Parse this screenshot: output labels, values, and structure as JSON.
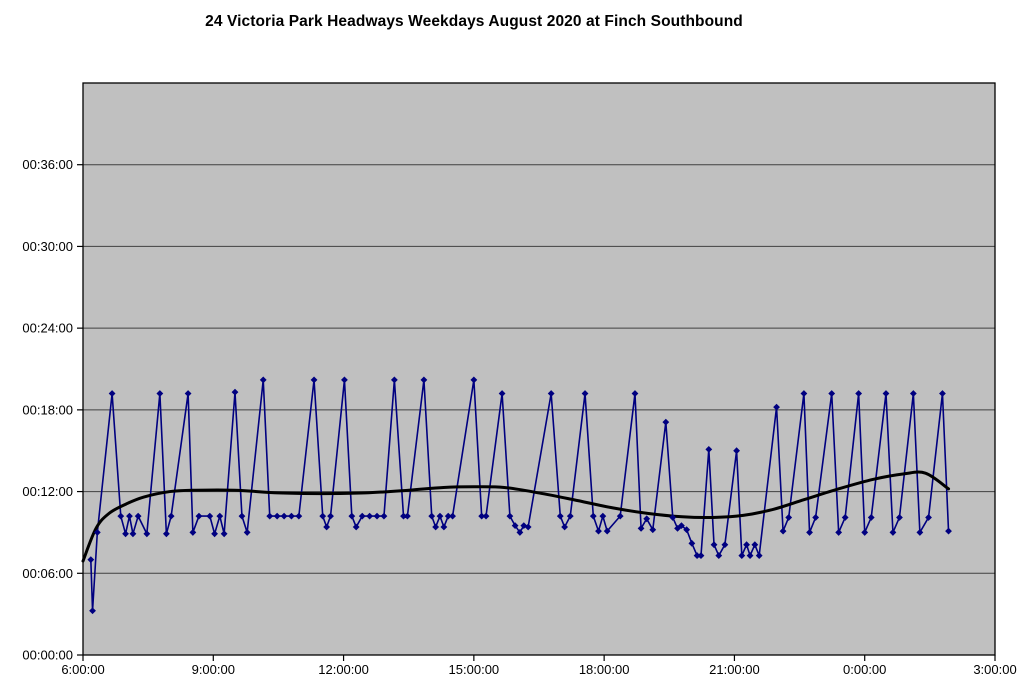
{
  "title": "24 Victoria Park Headways Weekdays August 2020 at Finch Southbound",
  "colors": {
    "plot_background": "#c0c0c0",
    "gridline": "#404040",
    "plot_border": "#000000",
    "headway_series": "#000080",
    "trend_series": "#000000",
    "page_background": "#ffffff",
    "text": "#000000"
  },
  "chart_data": {
    "type": "line",
    "title": "24 Victoria Park Headways Weekdays August 2020 at Finch Southbound",
    "xlabel": "",
    "ylabel": "",
    "legend": "none",
    "grid": "horizontal-only",
    "x_axis": {
      "unit": "time of day (decimal hours, 24+ = after midnight)",
      "min_hours": 6,
      "max_hours": 27,
      "tick_hours": [
        6,
        9,
        12,
        15,
        18,
        21,
        24,
        27
      ],
      "tick_labels": [
        "6:00:00",
        "9:00:00",
        "12:00:00",
        "15:00:00",
        "18:00:00",
        "21:00:00",
        "0:00:00",
        "3:00:00"
      ]
    },
    "y_axis": {
      "unit": "headway in minutes (shown as hh:mm:ss)",
      "min_minutes": 0,
      "max_minutes": 42,
      "tick_minutes": [
        0,
        6,
        12,
        18,
        24,
        30,
        36
      ],
      "tick_labels": [
        "00:00:00",
        "00:06:00",
        "00:12:00",
        "00:18:00",
        "00:24:00",
        "00:30:00",
        "00:36:00"
      ]
    },
    "series": [
      {
        "name": "headways",
        "style": "line-with-diamond-markers",
        "color": "#000080",
        "line_width": 1.6,
        "points": [
          [
            6.18,
            7.0
          ],
          [
            6.22,
            3.25
          ],
          [
            6.33,
            9.0
          ],
          [
            6.67,
            19.2
          ],
          [
            6.87,
            10.2
          ],
          [
            6.98,
            8.9
          ],
          [
            7.07,
            10.2
          ],
          [
            7.15,
            8.9
          ],
          [
            7.27,
            10.2
          ],
          [
            7.47,
            8.9
          ],
          [
            7.77,
            19.2
          ],
          [
            7.92,
            8.9
          ],
          [
            8.03,
            10.2
          ],
          [
            8.42,
            19.2
          ],
          [
            8.53,
            9.0
          ],
          [
            8.67,
            10.2
          ],
          [
            8.92,
            10.2
          ],
          [
            9.03,
            8.9
          ],
          [
            9.15,
            10.2
          ],
          [
            9.25,
            8.9
          ],
          [
            9.5,
            19.3
          ],
          [
            9.66,
            10.2
          ],
          [
            9.78,
            9.0
          ],
          [
            10.15,
            20.2
          ],
          [
            10.3,
            10.2
          ],
          [
            10.47,
            10.2
          ],
          [
            10.63,
            10.2
          ],
          [
            10.8,
            10.2
          ],
          [
            10.97,
            10.2
          ],
          [
            11.32,
            20.2
          ],
          [
            11.52,
            10.2
          ],
          [
            11.61,
            9.4
          ],
          [
            11.7,
            10.2
          ],
          [
            12.02,
            20.2
          ],
          [
            12.19,
            10.2
          ],
          [
            12.29,
            9.4
          ],
          [
            12.43,
            10.2
          ],
          [
            12.6,
            10.2
          ],
          [
            12.77,
            10.2
          ],
          [
            12.93,
            10.2
          ],
          [
            13.17,
            20.2
          ],
          [
            13.38,
            10.2
          ],
          [
            13.47,
            10.2
          ],
          [
            13.85,
            20.2
          ],
          [
            14.03,
            10.2
          ],
          [
            14.12,
            9.4
          ],
          [
            14.22,
            10.2
          ],
          [
            14.31,
            9.4
          ],
          [
            14.41,
            10.2
          ],
          [
            14.51,
            10.2
          ],
          [
            15.0,
            20.2
          ],
          [
            15.18,
            10.2
          ],
          [
            15.28,
            10.2
          ],
          [
            15.65,
            19.2
          ],
          [
            15.83,
            10.2
          ],
          [
            15.95,
            9.5
          ],
          [
            16.06,
            9.0
          ],
          [
            16.15,
            9.5
          ],
          [
            16.25,
            9.4
          ],
          [
            16.78,
            19.2
          ],
          [
            16.99,
            10.2
          ],
          [
            17.09,
            9.4
          ],
          [
            17.22,
            10.2
          ],
          [
            17.56,
            19.2
          ],
          [
            17.75,
            10.2
          ],
          [
            17.87,
            9.1
          ],
          [
            17.97,
            10.2
          ],
          [
            18.07,
            9.1
          ],
          [
            18.37,
            10.2
          ],
          [
            18.71,
            19.2
          ],
          [
            18.85,
            9.3
          ],
          [
            18.98,
            10.0
          ],
          [
            19.12,
            9.2
          ],
          [
            19.42,
            17.1
          ],
          [
            19.58,
            10.1
          ],
          [
            19.69,
            9.3
          ],
          [
            19.78,
            9.5
          ],
          [
            19.9,
            9.2
          ],
          [
            20.02,
            8.2
          ],
          [
            20.14,
            7.3
          ],
          [
            20.23,
            7.3
          ],
          [
            20.41,
            15.1
          ],
          [
            20.53,
            8.1
          ],
          [
            20.64,
            7.3
          ],
          [
            20.78,
            8.1
          ],
          [
            21.05,
            15.0
          ],
          [
            21.17,
            7.3
          ],
          [
            21.28,
            8.1
          ],
          [
            21.36,
            7.3
          ],
          [
            21.47,
            8.1
          ],
          [
            21.57,
            7.3
          ],
          [
            21.97,
            18.2
          ],
          [
            22.12,
            9.1
          ],
          [
            22.25,
            10.1
          ],
          [
            22.6,
            19.2
          ],
          [
            22.73,
            9.0
          ],
          [
            22.87,
            10.1
          ],
          [
            23.24,
            19.2
          ],
          [
            23.4,
            9.0
          ],
          [
            23.55,
            10.1
          ],
          [
            23.86,
            19.2
          ],
          [
            24.0,
            9.0
          ],
          [
            24.15,
            10.1
          ],
          [
            24.49,
            19.2
          ],
          [
            24.65,
            9.0
          ],
          [
            24.8,
            10.1
          ],
          [
            25.12,
            19.2
          ],
          [
            25.27,
            9.0
          ],
          [
            25.47,
            10.1
          ],
          [
            25.79,
            19.2
          ],
          [
            25.93,
            9.1
          ]
        ]
      },
      {
        "name": "trend (moving average)",
        "style": "smooth-line",
        "color": "#000000",
        "line_width": 3,
        "points": [
          [
            6.0,
            6.9
          ],
          [
            6.3,
            9.3
          ],
          [
            6.6,
            10.4
          ],
          [
            7.0,
            11.1
          ],
          [
            7.4,
            11.6
          ],
          [
            8.0,
            12.0
          ],
          [
            8.6,
            12.1
          ],
          [
            9.5,
            12.1
          ],
          [
            10.5,
            11.9
          ],
          [
            11.5,
            11.85
          ],
          [
            12.5,
            11.9
          ],
          [
            13.5,
            12.1
          ],
          [
            14.3,
            12.3
          ],
          [
            15.0,
            12.35
          ],
          [
            15.7,
            12.3
          ],
          [
            16.5,
            11.9
          ],
          [
            17.3,
            11.4
          ],
          [
            18.2,
            10.8
          ],
          [
            19.0,
            10.4
          ],
          [
            19.8,
            10.15
          ],
          [
            20.5,
            10.1
          ],
          [
            21.2,
            10.25
          ],
          [
            21.9,
            10.7
          ],
          [
            22.6,
            11.4
          ],
          [
            23.4,
            12.2
          ],
          [
            24.2,
            12.9
          ],
          [
            24.9,
            13.3
          ],
          [
            25.4,
            13.35
          ],
          [
            25.93,
            12.2
          ]
        ]
      }
    ]
  }
}
